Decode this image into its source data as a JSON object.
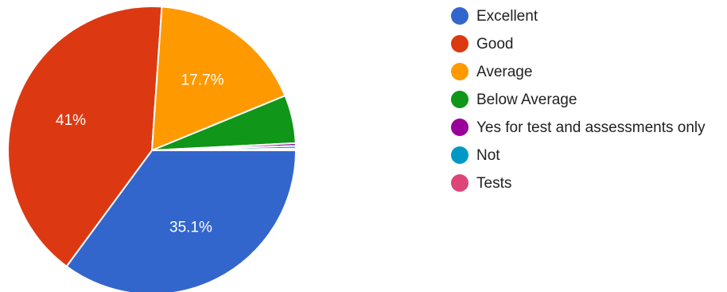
{
  "chart_data": {
    "type": "pie",
    "series": [
      {
        "label": "Excellent",
        "value": 35.1,
        "color": "#3366cc",
        "data_label": "35.1%"
      },
      {
        "label": "Good",
        "value": 41,
        "color": "#dc3912",
        "data_label": "41%"
      },
      {
        "label": "Average",
        "value": 17.7,
        "color": "#ff9900",
        "data_label": "17.7%"
      },
      {
        "label": "Below Average",
        "value": 5.4,
        "color": "#109618",
        "data_label": ""
      },
      {
        "label": "Yes for test and assessments only",
        "value": 0.3,
        "color": "#990099",
        "data_label": ""
      },
      {
        "label": "Not",
        "value": 0.3,
        "color": "#0099c6",
        "data_label": ""
      },
      {
        "label": "Tests",
        "value": 0.2,
        "color": "#dd4477",
        "data_label": ""
      }
    ],
    "legend_position": "right"
  }
}
